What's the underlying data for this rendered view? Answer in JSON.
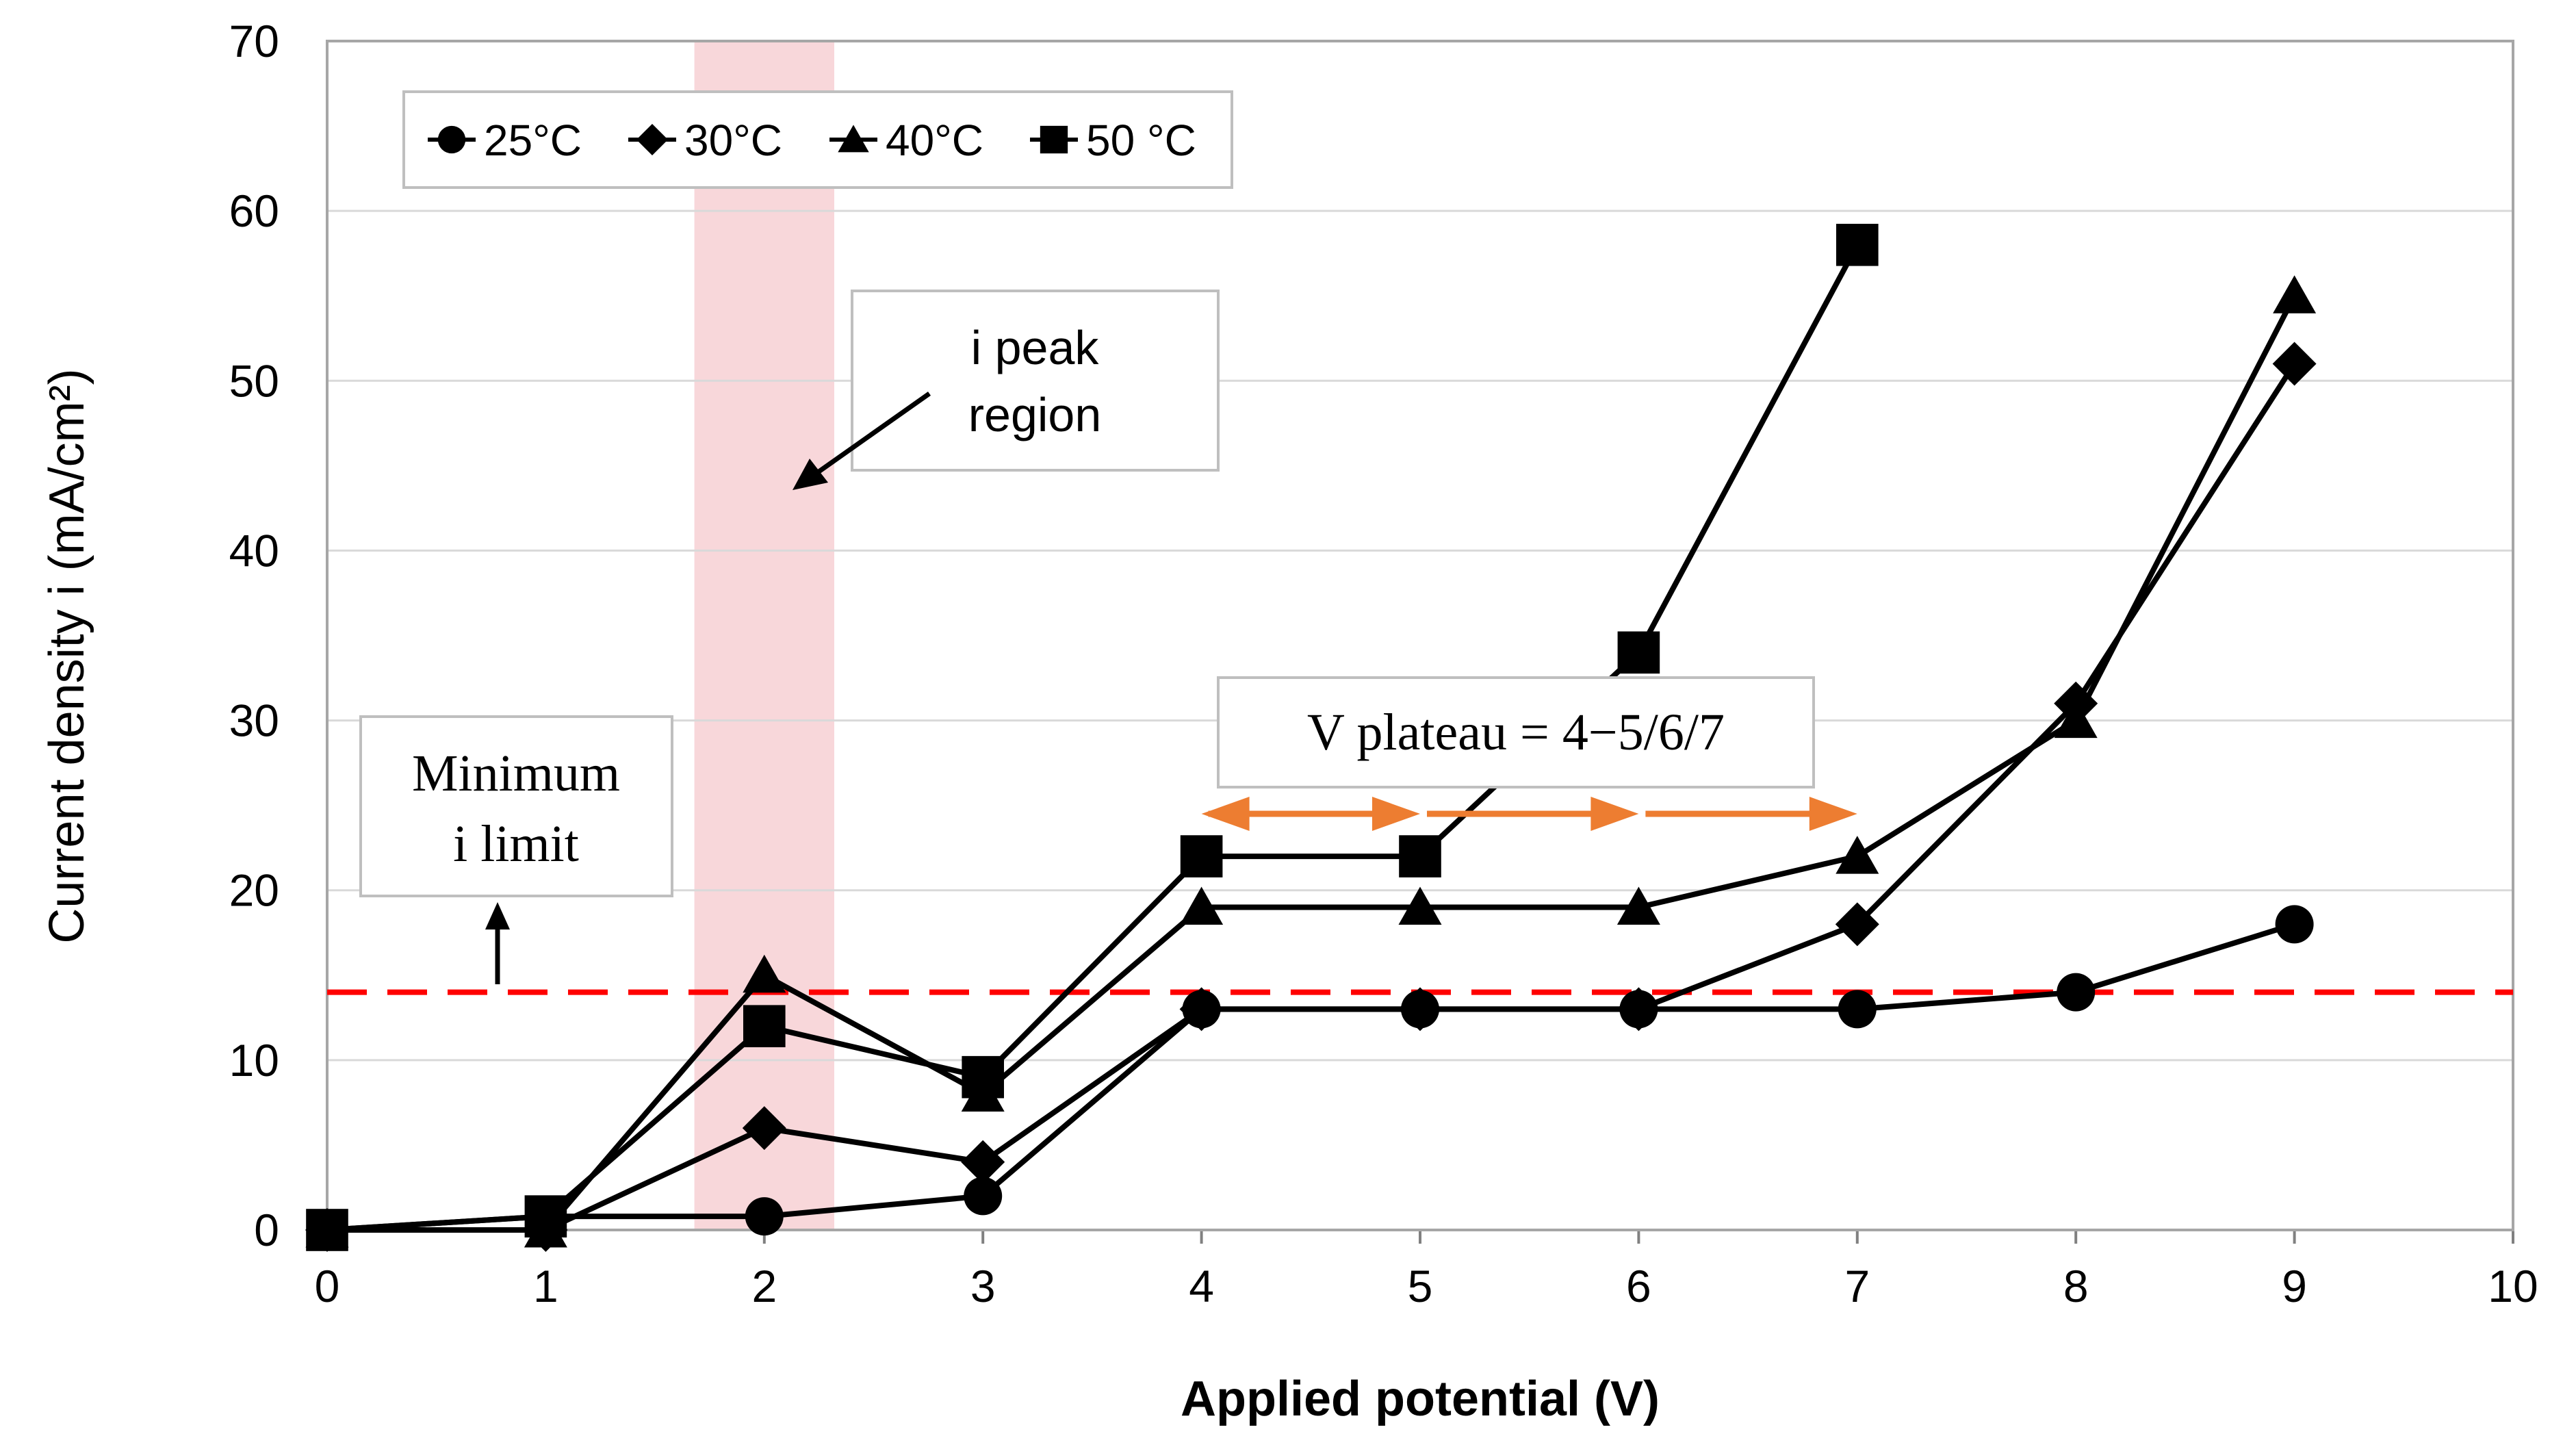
{
  "chart_data": {
    "type": "line",
    "title": "",
    "xlabel": "Applied potential (V)",
    "ylabel": "Current density i (mA/cm²)",
    "xlim": [
      0,
      10
    ],
    "ylim": [
      0,
      70
    ],
    "xticks": [
      0,
      1,
      2,
      3,
      4,
      5,
      6,
      7,
      8,
      9,
      10
    ],
    "yticks": [
      0,
      10,
      20,
      30,
      40,
      50,
      60,
      70
    ],
    "grid": "horizontal",
    "legend_position": "top-left",
    "series": [
      {
        "name": "25°C",
        "marker": "circle",
        "x": [
          0,
          1,
          2,
          3,
          4,
          5,
          6,
          7,
          8,
          9
        ],
        "y": [
          0,
          0.8,
          0.8,
          2,
          13,
          13,
          13,
          13,
          14,
          18
        ]
      },
      {
        "name": "30°C",
        "marker": "diamond",
        "x": [
          0,
          1,
          2,
          3,
          4,
          5,
          6,
          7,
          8,
          9
        ],
        "y": [
          0,
          0,
          6,
          4,
          13,
          13,
          13,
          18,
          31,
          51
        ]
      },
      {
        "name": "40°C",
        "marker": "triangle",
        "x": [
          0,
          1,
          2,
          3,
          4,
          5,
          6,
          7,
          8,
          9
        ],
        "y": [
          0,
          0,
          15,
          8,
          19,
          19,
          19,
          22,
          30,
          55
        ]
      },
      {
        "name": "50 °C",
        "marker": "square",
        "x": [
          0,
          1,
          2,
          3,
          4,
          5,
          6,
          7
        ],
        "y": [
          0,
          0.8,
          12,
          9,
          22,
          22,
          34,
          58
        ]
      }
    ],
    "threshold_line": {
      "y": 14,
      "color": "#ff0000",
      "style": "dashed"
    },
    "peak_band": {
      "x_start": 1.68,
      "x_end": 2.32,
      "color": "#f8d7da"
    },
    "plateau_arrows": {
      "y": 24.5,
      "x_start": 4,
      "x_end": 7,
      "segments": [
        [
          4,
          5
        ],
        [
          5,
          6
        ],
        [
          6,
          7
        ]
      ],
      "color": "#ed7d31"
    },
    "annotations": {
      "peak_region": [
        "i peak",
        "region"
      ],
      "minimum_limit": [
        "Minimum",
        "i limit"
      ],
      "plateau": "V plateau = 4−5/6/7"
    }
  }
}
